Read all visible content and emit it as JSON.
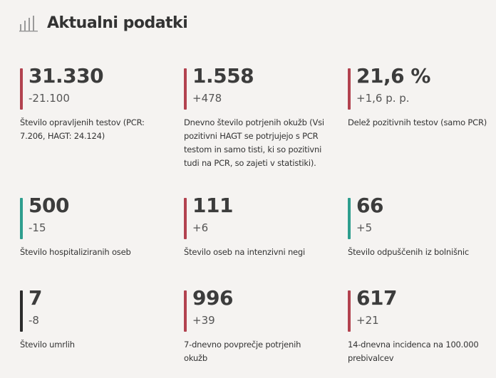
{
  "header": {
    "title": "Aktualni podatki",
    "icon": "bar-chart-icon"
  },
  "colors": {
    "red": "#b2424f",
    "teal": "#2e9e8e",
    "black": "#2b2b2b"
  },
  "stats": [
    {
      "value": "31.330",
      "change": "-21.100",
      "label": "Število opravljenih testov (PCR: 7.206, HAGT: 24.124)",
      "accent": "red"
    },
    {
      "value": "1.558",
      "change": "+478",
      "label": "Dnevno število potrjenih okužb (Vsi pozitivni HAGT se potrjujejo s PCR testom in samo tisti, ki so pozitivni tudi na PCR, so zajeti v statistiki).",
      "accent": "red"
    },
    {
      "value": "21,6 %",
      "change": "+1,6 p. p.",
      "label": "Delež pozitivnih testov (samo PCR)",
      "accent": "red"
    },
    {
      "value": "500",
      "change": "-15",
      "label": "Število hospitaliziranih oseb",
      "accent": "teal"
    },
    {
      "value": "111",
      "change": "+6",
      "label": "Število oseb na intenzivni negi",
      "accent": "red"
    },
    {
      "value": "66",
      "change": "+5",
      "label": "Število odpuščenih iz bolnišnic",
      "accent": "teal"
    },
    {
      "value": "7",
      "change": "-8",
      "label": "Število umrlih",
      "accent": "black"
    },
    {
      "value": "996",
      "change": "+39",
      "label": "7-dnevno povprečje potrjenih okužb",
      "accent": "red"
    },
    {
      "value": "617",
      "change": "+21",
      "label": "14-dnevna incidenca na 100.000 prebivalcev",
      "accent": "red"
    }
  ]
}
